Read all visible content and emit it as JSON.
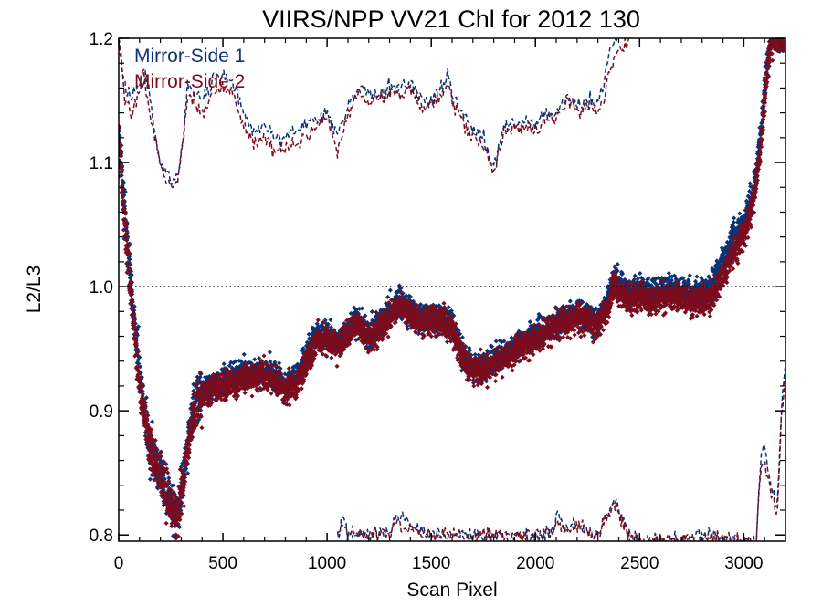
{
  "chart_data": {
    "type": "scatter",
    "title": "VIIRS/NPP VV21 Chl for 2012 130",
    "xlabel": "Scan Pixel",
    "ylabel": "L2/L3",
    "xlim": [
      0,
      3200
    ],
    "ylim": [
      0.795,
      1.2
    ],
    "xticks": [
      0,
      500,
      1000,
      1500,
      2000,
      2500,
      3000
    ],
    "yticks": [
      0.8,
      0.9,
      1.0,
      1.1,
      1.2
    ],
    "xtick_labels": [
      "0",
      "500",
      "1000",
      "1500",
      "2000",
      "2500",
      "3000"
    ],
    "ytick_labels": [
      "0.8",
      "0.9",
      "1.0",
      "1.1",
      "1.2"
    ],
    "reference_line": {
      "y": 1.0,
      "style": "dotted"
    },
    "legend_position": "top-left",
    "series": [
      {
        "name": "Mirror-Side 1",
        "color": "#0b3478",
        "mean_trend": [
          [
            0,
            1.13
          ],
          [
            20,
            1.08
          ],
          [
            60,
            1.0
          ],
          [
            100,
            0.93
          ],
          [
            150,
            0.87
          ],
          [
            200,
            0.85
          ],
          [
            240,
            0.83
          ],
          [
            280,
            0.81
          ],
          [
            300,
            0.83
          ],
          [
            330,
            0.87
          ],
          [
            360,
            0.905
          ],
          [
            400,
            0.915
          ],
          [
            500,
            0.925
          ],
          [
            600,
            0.93
          ],
          [
            700,
            0.932
          ],
          [
            800,
            0.92
          ],
          [
            850,
            0.925
          ],
          [
            900,
            0.945
          ],
          [
            950,
            0.96
          ],
          [
            1000,
            0.96
          ],
          [
            1050,
            0.955
          ],
          [
            1100,
            0.965
          ],
          [
            1150,
            0.972
          ],
          [
            1200,
            0.96
          ],
          [
            1250,
            0.97
          ],
          [
            1300,
            0.98
          ],
          [
            1350,
            0.99
          ],
          [
            1400,
            0.98
          ],
          [
            1450,
            0.975
          ],
          [
            1500,
            0.975
          ],
          [
            1550,
            0.975
          ],
          [
            1600,
            0.97
          ],
          [
            1650,
            0.945
          ],
          [
            1700,
            0.935
          ],
          [
            1750,
            0.935
          ],
          [
            1800,
            0.94
          ],
          [
            1850,
            0.945
          ],
          [
            1900,
            0.95
          ],
          [
            1950,
            0.955
          ],
          [
            2000,
            0.96
          ],
          [
            2050,
            0.965
          ],
          [
            2100,
            0.97
          ],
          [
            2150,
            0.975
          ],
          [
            2200,
            0.978
          ],
          [
            2250,
            0.975
          ],
          [
            2300,
            0.97
          ],
          [
            2350,
            0.99
          ],
          [
            2380,
            1.01
          ],
          [
            2400,
            1.005
          ],
          [
            2450,
            0.995
          ],
          [
            2500,
            0.997
          ],
          [
            2550,
            0.995
          ],
          [
            2600,
            0.997
          ],
          [
            2650,
            1.0
          ],
          [
            2700,
            0.997
          ],
          [
            2750,
            0.995
          ],
          [
            2800,
            0.995
          ],
          [
            2850,
            1.0
          ],
          [
            2900,
            1.02
          ],
          [
            2950,
            1.04
          ],
          [
            3000,
            1.05
          ],
          [
            3050,
            1.08
          ],
          [
            3080,
            1.12
          ],
          [
            3100,
            1.16
          ],
          [
            3130,
            1.2
          ]
        ],
        "upper_envelope": [
          [
            0,
            1.2
          ],
          [
            30,
            1.16
          ],
          [
            60,
            1.15
          ],
          [
            90,
            1.16
          ],
          [
            120,
            1.18
          ],
          [
            150,
            1.15
          ],
          [
            200,
            1.1
          ],
          [
            240,
            1.09
          ],
          [
            280,
            1.085
          ],
          [
            310,
            1.12
          ],
          [
            330,
            1.16
          ],
          [
            360,
            1.16
          ],
          [
            400,
            1.15
          ],
          [
            450,
            1.165
          ],
          [
            500,
            1.17
          ],
          [
            550,
            1.165
          ],
          [
            600,
            1.14
          ],
          [
            650,
            1.125
          ],
          [
            700,
            1.13
          ],
          [
            750,
            1.12
          ],
          [
            800,
            1.12
          ],
          [
            850,
            1.125
          ],
          [
            900,
            1.13
          ],
          [
            950,
            1.135
          ],
          [
            1000,
            1.14
          ],
          [
            1050,
            1.12
          ],
          [
            1100,
            1.145
          ],
          [
            1150,
            1.16
          ],
          [
            1200,
            1.155
          ],
          [
            1250,
            1.155
          ],
          [
            1300,
            1.16
          ],
          [
            1350,
            1.16
          ],
          [
            1400,
            1.165
          ],
          [
            1450,
            1.15
          ],
          [
            1500,
            1.15
          ],
          [
            1550,
            1.16
          ],
          [
            1580,
            1.17
          ],
          [
            1600,
            1.155
          ],
          [
            1650,
            1.14
          ],
          [
            1700,
            1.125
          ],
          [
            1750,
            1.12
          ],
          [
            1800,
            1.095
          ],
          [
            1850,
            1.13
          ],
          [
            1900,
            1.13
          ],
          [
            1950,
            1.135
          ],
          [
            2000,
            1.13
          ],
          [
            2050,
            1.14
          ],
          [
            2100,
            1.14
          ],
          [
            2150,
            1.155
          ],
          [
            2200,
            1.145
          ],
          [
            2250,
            1.15
          ],
          [
            2300,
            1.15
          ],
          [
            2330,
            1.16
          ],
          [
            2350,
            1.19
          ],
          [
            2400,
            1.2
          ]
        ],
        "lower_envelope": [
          [
            1050,
            0.8
          ],
          [
            1080,
            0.815
          ],
          [
            1100,
            0.8
          ],
          [
            1300,
            0.8
          ],
          [
            1330,
            0.815
          ],
          [
            1380,
            0.81
          ],
          [
            1420,
            0.805
          ],
          [
            1500,
            0.8
          ],
          [
            2080,
            0.8
          ],
          [
            2100,
            0.815
          ],
          [
            2150,
            0.805
          ],
          [
            2200,
            0.81
          ],
          [
            2250,
            0.805
          ],
          [
            2300,
            0.8
          ],
          [
            2380,
            0.83
          ],
          [
            2420,
            0.81
          ],
          [
            2450,
            0.8
          ],
          [
            2500,
            0.795
          ],
          [
            2700,
            0.795
          ],
          [
            2800,
            0.8
          ],
          [
            3060,
            0.795
          ],
          [
            3080,
            0.86
          ],
          [
            3100,
            0.87
          ],
          [
            3130,
            0.84
          ],
          [
            3160,
            0.82
          ],
          [
            3180,
            0.9
          ],
          [
            3200,
            0.94
          ]
        ]
      },
      {
        "name": "Mirror-Side 2",
        "color": "#7b0d1e",
        "mean_trend": [
          [
            0,
            1.12
          ],
          [
            20,
            1.07
          ],
          [
            60,
            0.99
          ],
          [
            100,
            0.92
          ],
          [
            150,
            0.87
          ],
          [
            200,
            0.85
          ],
          [
            240,
            0.83
          ],
          [
            280,
            0.815
          ],
          [
            300,
            0.83
          ],
          [
            330,
            0.865
          ],
          [
            360,
            0.9
          ],
          [
            400,
            0.912
          ],
          [
            500,
            0.92
          ],
          [
            600,
            0.925
          ],
          [
            700,
            0.928
          ],
          [
            800,
            0.917
          ],
          [
            850,
            0.92
          ],
          [
            900,
            0.94
          ],
          [
            950,
            0.957
          ],
          [
            1000,
            0.958
          ],
          [
            1050,
            0.952
          ],
          [
            1100,
            0.962
          ],
          [
            1150,
            0.968
          ],
          [
            1200,
            0.958
          ],
          [
            1250,
            0.966
          ],
          [
            1300,
            0.975
          ],
          [
            1350,
            0.985
          ],
          [
            1400,
            0.977
          ],
          [
            1450,
            0.972
          ],
          [
            1500,
            0.972
          ],
          [
            1550,
            0.972
          ],
          [
            1600,
            0.966
          ],
          [
            1650,
            0.942
          ],
          [
            1700,
            0.932
          ],
          [
            1750,
            0.932
          ],
          [
            1800,
            0.937
          ],
          [
            1850,
            0.942
          ],
          [
            1900,
            0.947
          ],
          [
            1950,
            0.952
          ],
          [
            2000,
            0.957
          ],
          [
            2050,
            0.962
          ],
          [
            2100,
            0.967
          ],
          [
            2150,
            0.972
          ],
          [
            2200,
            0.975
          ],
          [
            2250,
            0.972
          ],
          [
            2300,
            0.968
          ],
          [
            2350,
            0.985
          ],
          [
            2380,
            1.005
          ],
          [
            2400,
            0.995
          ],
          [
            2450,
            0.99
          ],
          [
            2500,
            0.99
          ],
          [
            2550,
            0.988
          ],
          [
            2600,
            0.99
          ],
          [
            2650,
            0.992
          ],
          [
            2700,
            0.99
          ],
          [
            2750,
            0.988
          ],
          [
            2800,
            0.988
          ],
          [
            2850,
            0.993
          ],
          [
            2900,
            1.01
          ],
          [
            2950,
            1.03
          ],
          [
            3000,
            1.04
          ],
          [
            3050,
            1.07
          ],
          [
            3080,
            1.11
          ],
          [
            3100,
            1.15
          ],
          [
            3130,
            1.2
          ]
        ],
        "upper_envelope": [
          [
            0,
            1.2
          ],
          [
            30,
            1.15
          ],
          [
            60,
            1.14
          ],
          [
            90,
            1.15
          ],
          [
            120,
            1.17
          ],
          [
            150,
            1.14
          ],
          [
            200,
            1.095
          ],
          [
            240,
            1.085
          ],
          [
            280,
            1.08
          ],
          [
            310,
            1.115
          ],
          [
            330,
            1.155
          ],
          [
            360,
            1.15
          ],
          [
            400,
            1.14
          ],
          [
            450,
            1.155
          ],
          [
            500,
            1.16
          ],
          [
            550,
            1.155
          ],
          [
            600,
            1.13
          ],
          [
            650,
            1.115
          ],
          [
            700,
            1.12
          ],
          [
            750,
            1.11
          ],
          [
            800,
            1.11
          ],
          [
            850,
            1.115
          ],
          [
            900,
            1.12
          ],
          [
            950,
            1.13
          ],
          [
            1000,
            1.135
          ],
          [
            1050,
            1.11
          ],
          [
            1100,
            1.14
          ],
          [
            1150,
            1.155
          ],
          [
            1200,
            1.15
          ],
          [
            1250,
            1.15
          ],
          [
            1300,
            1.155
          ],
          [
            1350,
            1.155
          ],
          [
            1400,
            1.16
          ],
          [
            1450,
            1.145
          ],
          [
            1500,
            1.145
          ],
          [
            1550,
            1.155
          ],
          [
            1580,
            1.16
          ],
          [
            1600,
            1.15
          ],
          [
            1650,
            1.135
          ],
          [
            1700,
            1.12
          ],
          [
            1750,
            1.115
          ],
          [
            1800,
            1.09
          ],
          [
            1850,
            1.125
          ],
          [
            1900,
            1.125
          ],
          [
            1950,
            1.13
          ],
          [
            2000,
            1.125
          ],
          [
            2050,
            1.135
          ],
          [
            2100,
            1.135
          ],
          [
            2150,
            1.15
          ],
          [
            2200,
            1.14
          ],
          [
            2250,
            1.145
          ],
          [
            2300,
            1.14
          ],
          [
            2330,
            1.15
          ],
          [
            2350,
            1.175
          ],
          [
            2400,
            1.19
          ],
          [
            2450,
            1.2
          ]
        ],
        "lower_envelope": [
          [
            1050,
            0.8
          ],
          [
            1080,
            0.81
          ],
          [
            1100,
            0.8
          ],
          [
            1300,
            0.8
          ],
          [
            1330,
            0.81
          ],
          [
            1380,
            0.805
          ],
          [
            1420,
            0.803
          ],
          [
            1500,
            0.8
          ],
          [
            2080,
            0.8
          ],
          [
            2100,
            0.81
          ],
          [
            2150,
            0.803
          ],
          [
            2200,
            0.807
          ],
          [
            2250,
            0.803
          ],
          [
            2300,
            0.8
          ],
          [
            2380,
            0.825
          ],
          [
            2420,
            0.807
          ],
          [
            2450,
            0.8
          ],
          [
            2500,
            0.795
          ],
          [
            2700,
            0.795
          ],
          [
            2800,
            0.798
          ],
          [
            3060,
            0.795
          ],
          [
            3080,
            0.855
          ],
          [
            3100,
            0.86
          ],
          [
            3130,
            0.835
          ],
          [
            3160,
            0.815
          ],
          [
            3180,
            0.89
          ],
          [
            3200,
            0.93
          ]
        ]
      }
    ]
  }
}
